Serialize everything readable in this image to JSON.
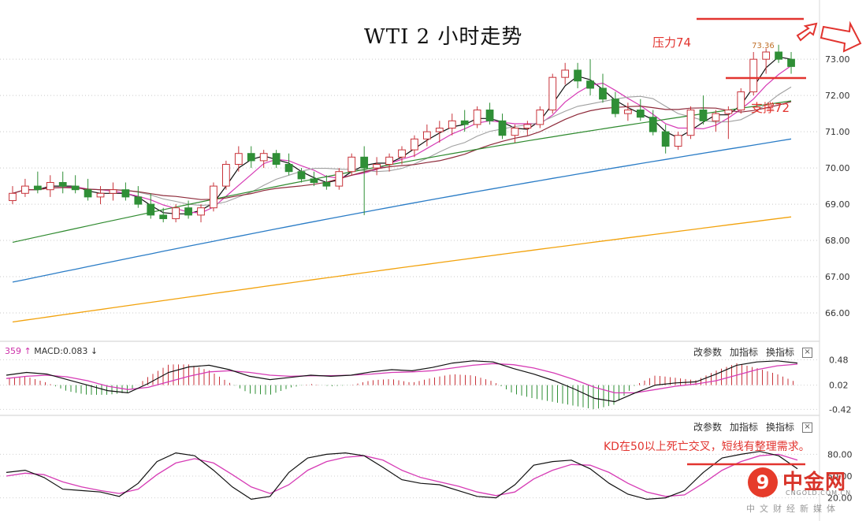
{
  "chart_data": {
    "type": "candlestick",
    "title": "WTI 2 小时走势",
    "main": {
      "ylim": [
        65.5,
        74.2
      ],
      "y_ticks": [
        "66.00",
        "67.00",
        "68.00",
        "69.00",
        "70.00",
        "71.00",
        "72.00",
        "73.00"
      ],
      "peak_label": "73.36",
      "candles": [
        [
          69.1,
          69.5,
          69.0,
          69.3
        ],
        [
          69.3,
          69.7,
          69.2,
          69.5
        ],
        [
          69.5,
          69.9,
          69.3,
          69.4
        ],
        [
          69.4,
          69.8,
          69.2,
          69.6
        ],
        [
          69.6,
          69.9,
          69.3,
          69.5
        ],
        [
          69.5,
          69.8,
          69.3,
          69.4
        ],
        [
          69.4,
          69.7,
          69.1,
          69.2
        ],
        [
          69.2,
          69.5,
          69.0,
          69.3
        ],
        [
          69.3,
          69.6,
          69.1,
          69.4
        ],
        [
          69.4,
          69.6,
          69.1,
          69.2
        ],
        [
          69.2,
          69.5,
          68.9,
          69.0
        ],
        [
          69.0,
          69.3,
          68.6,
          68.7
        ],
        [
          68.7,
          68.9,
          68.5,
          68.6
        ],
        [
          68.6,
          69.0,
          68.5,
          68.9
        ],
        [
          68.9,
          69.1,
          68.6,
          68.7
        ],
        [
          68.7,
          69.0,
          68.5,
          68.9
        ],
        [
          68.9,
          69.6,
          68.8,
          69.5
        ],
        [
          69.5,
          70.2,
          69.4,
          70.1
        ],
        [
          70.1,
          70.6,
          69.9,
          70.4
        ],
        [
          70.4,
          70.6,
          70.0,
          70.2
        ],
        [
          70.2,
          70.5,
          70.0,
          70.4
        ],
        [
          70.4,
          70.5,
          70.0,
          70.1
        ],
        [
          70.1,
          70.4,
          69.8,
          69.9
        ],
        [
          69.9,
          70.0,
          69.6,
          69.7
        ],
        [
          69.7,
          69.9,
          69.5,
          69.6
        ],
        [
          69.6,
          69.8,
          69.4,
          69.5
        ],
        [
          69.5,
          70.0,
          69.4,
          69.9
        ],
        [
          69.9,
          70.4,
          69.8,
          70.3
        ],
        [
          70.3,
          70.6,
          68.7,
          70.0
        ],
        [
          70.0,
          70.3,
          69.8,
          70.1
        ],
        [
          70.1,
          70.4,
          69.9,
          70.3
        ],
        [
          70.3,
          70.6,
          70.1,
          70.5
        ],
        [
          70.5,
          70.9,
          70.3,
          70.8
        ],
        [
          70.8,
          71.2,
          70.6,
          71.0
        ],
        [
          71.0,
          71.3,
          70.7,
          71.1
        ],
        [
          71.1,
          71.5,
          70.9,
          71.3
        ],
        [
          71.3,
          71.6,
          71.0,
          71.2
        ],
        [
          71.2,
          71.7,
          71.1,
          71.6
        ],
        [
          71.6,
          71.8,
          71.2,
          71.3
        ],
        [
          71.3,
          71.5,
          70.8,
          70.9
        ],
        [
          70.9,
          71.2,
          70.7,
          71.1
        ],
        [
          71.1,
          71.3,
          70.9,
          71.2
        ],
        [
          71.2,
          71.7,
          71.1,
          71.6
        ],
        [
          71.6,
          72.6,
          71.5,
          72.5
        ],
        [
          72.5,
          72.9,
          72.3,
          72.7
        ],
        [
          72.7,
          72.9,
          72.2,
          72.4
        ],
        [
          72.4,
          73.0,
          72.0,
          72.2
        ],
        [
          72.2,
          72.6,
          71.8,
          71.9
        ],
        [
          71.9,
          72.1,
          71.4,
          71.5
        ],
        [
          71.5,
          71.8,
          71.3,
          71.6
        ],
        [
          71.6,
          71.9,
          71.3,
          71.4
        ],
        [
          71.4,
          71.6,
          70.9,
          71.0
        ],
        [
          71.0,
          71.2,
          70.4,
          70.6
        ],
        [
          70.6,
          71.0,
          70.5,
          70.9
        ],
        [
          70.9,
          71.7,
          70.8,
          71.6
        ],
        [
          71.6,
          72.0,
          71.2,
          71.3
        ],
        [
          71.3,
          71.6,
          71.0,
          71.5
        ],
        [
          71.5,
          71.7,
          70.8,
          71.6
        ],
        [
          71.6,
          72.2,
          71.5,
          72.1
        ],
        [
          72.1,
          73.2,
          72.0,
          73.0
        ],
        [
          73.0,
          73.3,
          72.6,
          73.2
        ],
        [
          73.2,
          73.4,
          72.9,
          73.0
        ],
        [
          73.0,
          73.2,
          72.6,
          72.8
        ]
      ]
    },
    "macd": {
      "label": "359",
      "name": "MACD:0.083",
      "ylim": [
        -0.5,
        0.6
      ],
      "y_ticks": [
        "0.48",
        "0.02",
        "-0.42"
      ],
      "dif": [
        0.2,
        0.25,
        0.22,
        0.12,
        0.02,
        -0.08,
        -0.12,
        0.05,
        0.25,
        0.35,
        0.38,
        0.3,
        0.18,
        0.12,
        0.16,
        0.2,
        0.18,
        0.2,
        0.26,
        0.3,
        0.28,
        0.34,
        0.42,
        0.46,
        0.44,
        0.32,
        0.22,
        0.1,
        -0.05,
        -0.22,
        -0.28,
        -0.12,
        0.02,
        0.06,
        0.08,
        0.22,
        0.38,
        0.44,
        0.46,
        0.42
      ],
      "dea": [
        0.14,
        0.18,
        0.2,
        0.17,
        0.1,
        0.0,
        -0.06,
        -0.02,
        0.08,
        0.18,
        0.26,
        0.28,
        0.25,
        0.2,
        0.18,
        0.19,
        0.19,
        0.2,
        0.22,
        0.25,
        0.26,
        0.28,
        0.33,
        0.38,
        0.41,
        0.39,
        0.33,
        0.24,
        0.12,
        -0.02,
        -0.12,
        -0.12,
        -0.06,
        0.0,
        0.04,
        0.1,
        0.2,
        0.3,
        0.37,
        0.4
      ],
      "controls": [
        "改参数",
        "加指标",
        "换指标"
      ]
    },
    "kd": {
      "ylim": [
        0,
        100
      ],
      "y_ticks": [
        "80.00",
        "50.00",
        "20.00"
      ],
      "k": [
        55,
        58,
        48,
        32,
        30,
        28,
        22,
        40,
        70,
        82,
        78,
        58,
        35,
        18,
        22,
        55,
        75,
        80,
        82,
        78,
        62,
        45,
        40,
        38,
        30,
        22,
        20,
        38,
        65,
        70,
        72,
        60,
        40,
        25,
        18,
        20,
        30,
        55,
        75,
        80,
        84,
        78,
        60
      ],
      "d": [
        50,
        54,
        52,
        42,
        35,
        30,
        26,
        32,
        52,
        68,
        74,
        68,
        52,
        35,
        26,
        38,
        58,
        70,
        76,
        78,
        72,
        58,
        48,
        42,
        36,
        28,
        23,
        28,
        46,
        58,
        66,
        65,
        55,
        40,
        28,
        22,
        24,
        40,
        58,
        70,
        78,
        80,
        72
      ],
      "controls": [
        "改参数",
        "加指标",
        "换指标"
      ]
    },
    "annotations": {
      "resistance": "压力74",
      "support": "支撑72",
      "kd_note": "KD在50以上死亡交叉，短线有整理需求。"
    }
  },
  "logo": {
    "name": "中金网",
    "domain": "CNGOLD.COM.CN",
    "sub": "中文财经新媒体"
  },
  "colors": {
    "up": "#c8333a",
    "down": "#2f8f36",
    "ma_black": "#111111",
    "ma_pink": "#d63bb5",
    "ma_gray": "#a0a0a0",
    "ma_brown": "#8e2a3a",
    "ma_green": "#2f8a2f",
    "ma_blue": "#2a7cc6",
    "ma_orange": "#f2a20c",
    "annotation": "#e2342f"
  }
}
